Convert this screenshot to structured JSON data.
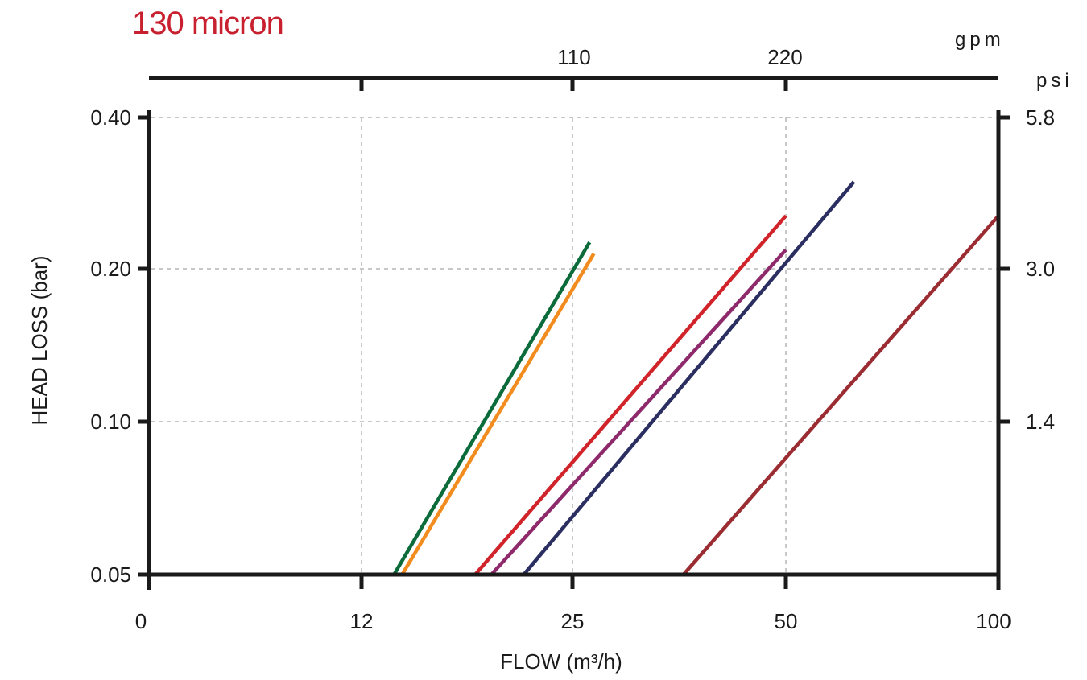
{
  "chart_data": {
    "type": "line",
    "title": "130 micron",
    "xlabel": "FLOW (m³/h)",
    "ylabel": "HEAD LOSS  (bar)",
    "x_ticks": [
      "0",
      "12",
      "25",
      "50",
      "100"
    ],
    "y_ticks": [
      "0.05",
      "0.10",
      "0.20",
      "0.40"
    ],
    "secondary_x": {
      "unit": "gpm",
      "ticks": [
        "110",
        "220"
      ]
    },
    "secondary_y": {
      "unit": "psi",
      "ticks": [
        "1.4",
        "3.0",
        "5.8"
      ]
    },
    "grid": true,
    "series": [
      {
        "color": "#0b6b3a",
        "x": [
          14,
          27
        ],
        "y": [
          0.05,
          0.235
        ]
      },
      {
        "color": "#f28c1e",
        "x": [
          14.5,
          27.5
        ],
        "y": [
          0.05,
          0.22
        ]
      },
      {
        "color": "#d0232a",
        "x": [
          19,
          50
        ],
        "y": [
          0.05,
          0.27
        ]
      },
      {
        "color": "#8e2a6b",
        "x": [
          20,
          50
        ],
        "y": [
          0.05,
          0.225
        ]
      },
      {
        "color": "#2b2e60",
        "x": [
          22,
          66
        ],
        "y": [
          0.05,
          0.315
        ]
      },
      {
        "color": "#9b2c32",
        "x": [
          38,
          100
        ],
        "y": [
          0.05,
          0.27
        ]
      }
    ]
  }
}
